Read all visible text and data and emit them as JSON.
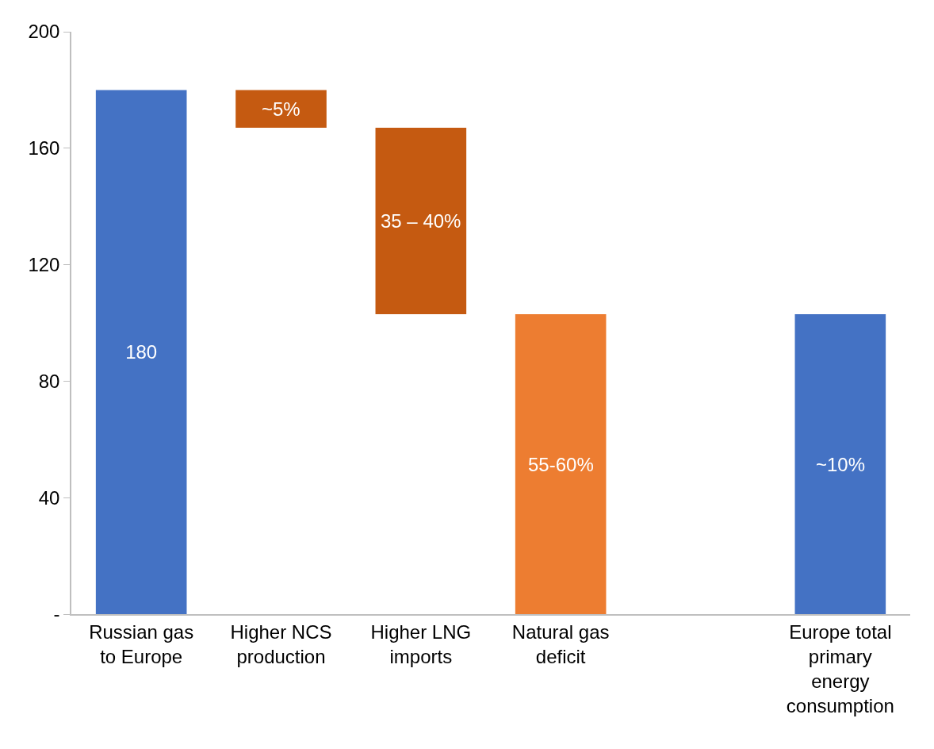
{
  "chart_data": {
    "type": "bar",
    "categories": [
      "Russian gas to Europe",
      "Higher NCS production",
      "Higher LNG imports",
      "Natural gas deficit",
      null,
      "Europe total primary energy consumption"
    ],
    "values": [
      180,
      13,
      64,
      103,
      null,
      103
    ],
    "base": [
      0,
      167,
      103,
      0,
      null,
      0
    ],
    "colors": [
      "#4472c4",
      "#c55a11",
      "#c55a11",
      "#ed7d31",
      null,
      "#4472c4"
    ],
    "value_labels": [
      "180",
      null,
      null,
      null,
      null,
      null
    ],
    "annotations": [
      "~5%",
      "35 – 40%",
      "55-60%",
      "~10%"
    ],
    "ylim": [
      0,
      200
    ],
    "yticks": [
      {
        "value": 0,
        "label": "-"
      },
      40,
      80,
      120,
      160,
      200
    ]
  }
}
